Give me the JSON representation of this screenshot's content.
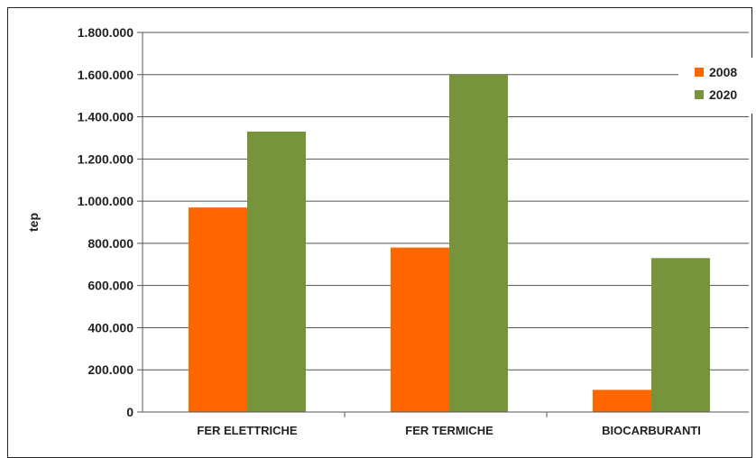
{
  "chart_data": {
    "type": "bar",
    "title": "",
    "xlabel": "",
    "ylabel": "tep",
    "categories": [
      "FER ELETTRICHE",
      "FER TERMICHE",
      "BIOCARBURANTI"
    ],
    "series": [
      {
        "name": "2008",
        "color": "#ff6600",
        "values": [
          970000,
          780000,
          105000
        ]
      },
      {
        "name": "2020",
        "color": "#77933c",
        "values": [
          1330000,
          1600000,
          730000
        ]
      }
    ],
    "ylim": [
      0,
      1800000
    ],
    "yticks": [
      0,
      200000,
      400000,
      600000,
      800000,
      1000000,
      1200000,
      1400000,
      1600000,
      1800000
    ],
    "ytick_labels": [
      "0",
      "200.000",
      "400.000",
      "600.000",
      "800.000",
      "1.000.000",
      "1.200.000",
      "1.400.000",
      "1.600.000",
      "1.800.000"
    ],
    "grid": true,
    "legend_position": "top-right"
  }
}
